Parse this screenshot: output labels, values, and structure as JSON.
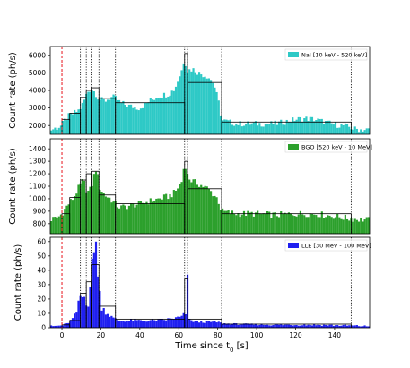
{
  "chart_data": [
    {
      "type": "bar",
      "panel": "top",
      "legend": "NaI [10 keV - 520 keV]",
      "legend_location": "top-right",
      "color": "#2ec9c6",
      "ylabel": "Count rate (ph/s)",
      "ylim": [
        1500,
        6500
      ],
      "yticks": [
        "2000",
        "3000",
        "4000",
        "5000",
        "6000"
      ],
      "ytick_values": [
        2000,
        3000,
        4000,
        5000,
        6000
      ],
      "xlim": [
        -6,
        158
      ],
      "bin_width": 1,
      "profile": [
        [
          -6,
          1750
        ],
        [
          -3,
          1850
        ],
        [
          0,
          2000
        ],
        [
          1,
          2200
        ],
        [
          3,
          2500
        ],
        [
          6,
          2700
        ],
        [
          9,
          2900
        ],
        [
          11,
          3300
        ],
        [
          13,
          3900
        ],
        [
          15,
          4100
        ],
        [
          17,
          3900
        ],
        [
          19,
          3500
        ],
        [
          22,
          3400
        ],
        [
          25,
          3600
        ],
        [
          27,
          3600
        ],
        [
          30,
          3300
        ],
        [
          35,
          3100
        ],
        [
          40,
          3000
        ],
        [
          45,
          3400
        ],
        [
          50,
          3700
        ],
        [
          55,
          3800
        ],
        [
          58,
          4100
        ],
        [
          60,
          4700
        ],
        [
          62,
          5300
        ],
        [
          63,
          6000
        ],
        [
          64,
          5100
        ],
        [
          66,
          5200
        ],
        [
          68,
          5200
        ],
        [
          70,
          5000
        ],
        [
          75,
          4800
        ],
        [
          78,
          4400
        ],
        [
          81,
          3100
        ],
        [
          82,
          2300
        ],
        [
          90,
          2100
        ],
        [
          100,
          2100
        ],
        [
          110,
          2100
        ],
        [
          120,
          2350
        ],
        [
          125,
          2400
        ],
        [
          130,
          2350
        ],
        [
          135,
          2200
        ],
        [
          140,
          2050
        ],
        [
          145,
          2000
        ],
        [
          148,
          1900
        ],
        [
          150,
          1800
        ],
        [
          158,
          1750
        ]
      ],
      "blocks": [
        [
          0,
          4,
          2350
        ],
        [
          4,
          9.5,
          2700
        ],
        [
          9.5,
          12.5,
          3600
        ],
        [
          12.5,
          15,
          4000
        ],
        [
          15,
          19,
          4150
        ],
        [
          19,
          27.5,
          3550
        ],
        [
          27.5,
          63,
          3300
        ],
        [
          63,
          64.5,
          6100
        ],
        [
          64.5,
          82,
          4450
        ],
        [
          82,
          148.5,
          2200
        ]
      ]
    },
    {
      "type": "bar",
      "panel": "middle",
      "legend": "BGO [520 keV - 10 MeV]",
      "legend_location": "top-right",
      "color": "#2ca02c",
      "ylabel": "Count rate (ph/s)",
      "ylim": [
        720,
        1480
      ],
      "yticks": [
        "800",
        "900",
        "1000",
        "1100",
        "1200",
        "1300",
        "1400"
      ],
      "ytick_values": [
        800,
        900,
        1000,
        1100,
        1200,
        1300,
        1400
      ],
      "xlim": [
        -6,
        158
      ],
      "bin_width": 1,
      "profile": [
        [
          -6,
          830
        ],
        [
          -2,
          850
        ],
        [
          0,
          880
        ],
        [
          3,
          950
        ],
        [
          6,
          1010
        ],
        [
          9,
          1100
        ],
        [
          11,
          1150
        ],
        [
          13,
          1050
        ],
        [
          15,
          1080
        ],
        [
          17,
          1220
        ],
        [
          18,
          1250
        ],
        [
          19,
          1100
        ],
        [
          22,
          1030
        ],
        [
          25,
          1000
        ],
        [
          27,
          960
        ],
        [
          30,
          930
        ],
        [
          40,
          960
        ],
        [
          50,
          1000
        ],
        [
          55,
          1020
        ],
        [
          58,
          1050
        ],
        [
          60,
          1100
        ],
        [
          62,
          1150
        ],
        [
          63,
          1330
        ],
        [
          64,
          1200
        ],
        [
          66,
          1150
        ],
        [
          70,
          1120
        ],
        [
          75,
          1080
        ],
        [
          80,
          1000
        ],
        [
          82,
          900
        ],
        [
          90,
          880
        ],
        [
          100,
          880
        ],
        [
          110,
          870
        ],
        [
          120,
          880
        ],
        [
          130,
          880
        ],
        [
          140,
          860
        ],
        [
          148,
          840
        ],
        [
          158,
          830
        ]
      ],
      "blocks": [
        [
          0,
          4,
          880
        ],
        [
          4,
          9.5,
          1010
        ],
        [
          9.5,
          12.5,
          1150
        ],
        [
          12.5,
          15,
          1200
        ],
        [
          15,
          19,
          1220
        ],
        [
          19,
          27.5,
          1030
        ],
        [
          27.5,
          63,
          960
        ],
        [
          63,
          64.5,
          1300
        ],
        [
          64.5,
          82,
          1080
        ],
        [
          82,
          148.5,
          880
        ]
      ]
    },
    {
      "type": "bar",
      "panel": "bottom",
      "legend": "LLE [30 MeV - 100 MeV]",
      "legend_location": "top-right",
      "color": "#1f1ff0",
      "ylabel": "Count rate (ph/s)",
      "ylim": [
        0,
        63
      ],
      "yticks": [
        "0",
        "10",
        "20",
        "30",
        "40",
        "50",
        "60"
      ],
      "ytick_values": [
        0,
        10,
        20,
        30,
        40,
        50,
        60
      ],
      "xlabel": "Time since t$_0$ [s]",
      "xlim": [
        -6,
        158
      ],
      "xticks": [
        "0",
        "20",
        "40",
        "60",
        "80",
        "100",
        "120",
        "140"
      ],
      "xtick_values": [
        0,
        20,
        40,
        60,
        80,
        100,
        120,
        140
      ],
      "bin_width": 1,
      "profile": [
        [
          -6,
          1
        ],
        [
          0,
          1.5
        ],
        [
          3,
          3
        ],
        [
          6,
          7
        ],
        [
          8,
          12
        ],
        [
          9,
          20
        ],
        [
          10,
          24
        ],
        [
          11,
          18
        ],
        [
          12,
          25
        ],
        [
          13,
          12
        ],
        [
          15,
          35
        ],
        [
          16,
          48
        ],
        [
          17,
          55
        ],
        [
          18,
          40
        ],
        [
          19,
          30
        ],
        [
          20,
          16
        ],
        [
          22,
          12
        ],
        [
          25,
          8
        ],
        [
          27,
          6
        ],
        [
          30,
          5
        ],
        [
          40,
          5
        ],
        [
          50,
          5
        ],
        [
          55,
          6
        ],
        [
          60,
          7
        ],
        [
          62,
          8
        ],
        [
          63,
          10
        ],
        [
          64,
          6
        ],
        [
          66,
          5
        ],
        [
          70,
          4
        ],
        [
          80,
          4
        ],
        [
          82,
          3
        ],
        [
          90,
          2.5
        ],
        [
          110,
          2
        ],
        [
          130,
          2
        ],
        [
          148,
          1.5
        ],
        [
          158,
          1
        ]
      ],
      "spikes": [
        [
          64,
          37
        ],
        [
          17,
          60
        ],
        [
          16,
          52
        ]
      ],
      "blocks": [
        [
          0,
          4,
          2
        ],
        [
          4,
          9.5,
          5
        ],
        [
          9.5,
          12.5,
          24
        ],
        [
          12.5,
          15,
          32
        ],
        [
          15,
          19,
          44
        ],
        [
          19,
          27.5,
          15
        ],
        [
          27.5,
          63,
          6
        ],
        [
          63,
          64.5,
          34
        ],
        [
          64.5,
          82,
          6
        ],
        [
          82,
          148.5,
          2.5
        ]
      ]
    }
  ],
  "vlines_dotted": [
    9.5,
    12.5,
    15,
    19,
    27.5,
    63,
    64.5,
    82,
    148.5
  ],
  "vline_dashed_t0": 0,
  "vline_dashed_color": "#e8141c",
  "block_edge_color": "#000000"
}
